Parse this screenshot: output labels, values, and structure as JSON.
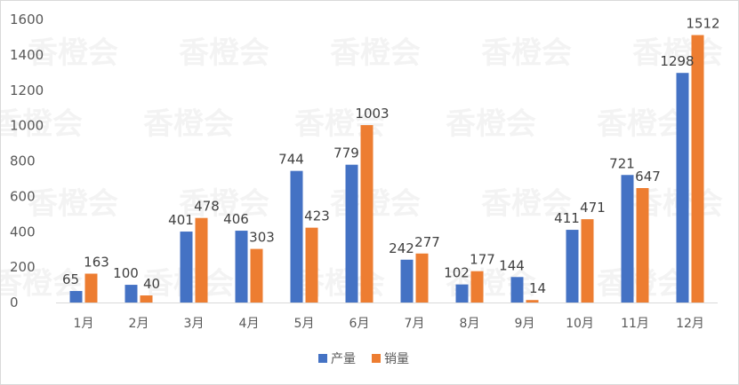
{
  "chart_data": {
    "type": "bar",
    "categories": [
      "1月",
      "2月",
      "3月",
      "4月",
      "5月",
      "6月",
      "7月",
      "8月",
      "9月",
      "10月",
      "11月",
      "12月"
    ],
    "series": [
      {
        "name": "产量",
        "color": "#4472C4",
        "values": [
          65,
          100,
          401,
          406,
          744,
          779,
          242,
          102,
          144,
          411,
          721,
          1298
        ]
      },
      {
        "name": "销量",
        "color": "#ED7D31",
        "values": [
          163,
          40,
          478,
          303,
          423,
          1003,
          277,
          177,
          14,
          471,
          647,
          1512
        ]
      }
    ],
    "ylim": [
      0,
      1600
    ],
    "yticks": [
      0,
      200,
      400,
      600,
      800,
      1000,
      1200,
      1400,
      1600
    ],
    "grid": false,
    "legend": "bottom",
    "title": "",
    "xlabel": "",
    "ylabel": ""
  }
}
